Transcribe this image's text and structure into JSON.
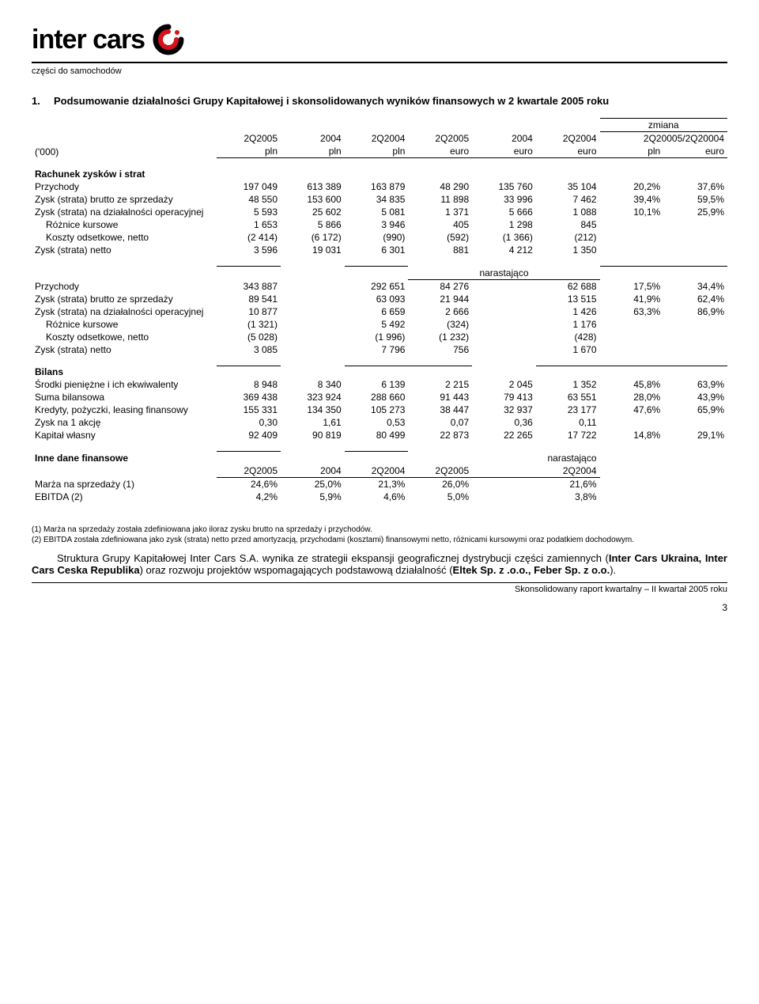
{
  "logo": {
    "text": "inter cars",
    "tagline": "części do samochodów",
    "icon_color_outer": "#000000",
    "icon_color_inner": "#d4131a"
  },
  "section": {
    "num": "1.",
    "title": "Podsumowanie działalności Grupy Kapitałowej i skonsolidowanych wyników finansowych w 2 kwartale 2005 roku"
  },
  "hdr": {
    "zmiana": "zmiana",
    "c1": "2Q2005",
    "c2": "2004",
    "c3": "2Q2004",
    "c4": "2Q2005",
    "c5": "2004",
    "c6": "2Q2004",
    "c7": "2Q20005/2Q20004",
    "unit_row_label": "('000)",
    "u1": "pln",
    "u2": "pln",
    "u3": "pln",
    "u4": "euro",
    "u5": "euro",
    "u6": "euro",
    "u7": "pln",
    "u8": "euro"
  },
  "rach": {
    "title": "Rachunek zysków i strat",
    "rows": [
      {
        "label": "Przychody",
        "v": [
          "197 049",
          "613 389",
          "163 879",
          "48 290",
          "135 760",
          "35 104",
          "20,2%",
          "37,6%"
        ]
      },
      {
        "label": "Zysk (strata) brutto ze sprzedaży",
        "v": [
          "48 550",
          "153 600",
          "34 835",
          "11 898",
          "33 996",
          "7 462",
          "39,4%",
          "59,5%"
        ]
      },
      {
        "label": "Zysk (strata) na działalności operacyjnej",
        "v": [
          "5 593",
          "25 602",
          "5 081",
          "1 371",
          "5 666",
          "1 088",
          "10,1%",
          "25,9%"
        ]
      },
      {
        "label": "Różnice kursowe",
        "indent": true,
        "v": [
          "1 653",
          "5 866",
          "3 946",
          "405",
          "1 298",
          "845",
          "",
          ""
        ]
      },
      {
        "label": "Koszty odsetkowe, netto",
        "indent": true,
        "v": [
          "(2 414)",
          "(6 172)",
          "(990)",
          "(592)",
          "(1 366)",
          "(212)",
          "",
          ""
        ]
      },
      {
        "label": "Zysk (strata) netto",
        "v": [
          "3 596",
          "19 031",
          "6 301",
          "881",
          "4 212",
          "1 350",
          "",
          ""
        ]
      }
    ]
  },
  "nar": {
    "label": "narastająco",
    "rows": [
      {
        "label": "Przychody",
        "v": [
          "343 887",
          "",
          "292 651",
          "84 276",
          "",
          "62 688",
          "17,5%",
          "34,4%"
        ]
      },
      {
        "label": "Zysk (strata) brutto ze sprzedaży",
        "v": [
          "89 541",
          "",
          "63 093",
          "21 944",
          "",
          "13 515",
          "41,9%",
          "62,4%"
        ]
      },
      {
        "label": "Zysk (strata) na działalności operacyjnej",
        "v": [
          "10 877",
          "",
          "6 659",
          "2 666",
          "",
          "1 426",
          "63,3%",
          "86,9%"
        ]
      },
      {
        "label": "Różnice kursowe",
        "indent": true,
        "v": [
          "(1 321)",
          "",
          "5 492",
          "(324)",
          "",
          "1 176",
          "",
          ""
        ]
      },
      {
        "label": "Koszty odsetkowe, netto",
        "indent": true,
        "v": [
          "(5 028)",
          "",
          "(1 996)",
          "(1 232)",
          "",
          "(428)",
          "",
          ""
        ]
      },
      {
        "label": "Zysk (strata) netto",
        "v": [
          "3 085",
          "",
          "7 796",
          "756",
          "",
          "1 670",
          "",
          ""
        ]
      }
    ]
  },
  "bilans": {
    "title": "Bilans",
    "rows": [
      {
        "label": "Środki pieniężne i ich ekwiwalenty",
        "v": [
          "8 948",
          "8 340",
          "6 139",
          "2 215",
          "2 045",
          "1 352",
          "45,8%",
          "63,9%"
        ]
      },
      {
        "label": "Suma bilansowa",
        "v": [
          "369 438",
          "323 924",
          "288 660",
          "91 443",
          "79 413",
          "63 551",
          "28,0%",
          "43,9%"
        ]
      },
      {
        "label": "Kredyty, pożyczki, leasing finansowy",
        "v": [
          "155 331",
          "134 350",
          "105 273",
          "38 447",
          "32 937",
          "23 177",
          "47,6%",
          "65,9%"
        ]
      },
      {
        "label": "Zysk na 1 akcję",
        "v": [
          "0,30",
          "1,61",
          "0,53",
          "0,07",
          "0,36",
          "0,11",
          "",
          ""
        ]
      },
      {
        "label": "Kapitał własny",
        "v": [
          "92 409",
          "90 819",
          "80 499",
          "22 873",
          "22 265",
          "17 722",
          "14,8%",
          "29,1%"
        ]
      }
    ]
  },
  "inne": {
    "title": "Inne dane finansowe",
    "nar": "narastająco",
    "hdr": [
      "2Q2005",
      "2004",
      "2Q2004",
      "2Q2005",
      "",
      "2Q2004"
    ],
    "rows": [
      {
        "label": "Marża na sprzedaży (1)",
        "v": [
          "24,6%",
          "25,0%",
          "21,3%",
          "26,0%",
          "",
          "21,6%"
        ]
      },
      {
        "label": "EBITDA (2)",
        "v": [
          "4,2%",
          "5,9%",
          "4,6%",
          "5,0%",
          "",
          "3,8%"
        ]
      }
    ]
  },
  "footnotes": {
    "f1": "(1)    Marża na sprzedaży została zdefiniowana jako iloraz zysku brutto na sprzedaży i przychodów.",
    "f2": "(2)    EBITDA została zdefiniowana jako zysk (strata) netto przed amortyzacją, przychodami (kosztami) finansowymi netto, różnicami kursowymi oraz podatkiem dochodowym."
  },
  "body": "Struktura Grupy Kapitałowej Inter Cars S.A. wynika ze strategii ekspansji geograficznej dystrybucji części zamiennych (Inter Cars Ukraina, Inter Cars Ceska Republika) oraz rozwoju projektów wspomagających podstawową działalność (Eltek Sp. z .o.o., Feber Sp. z o.o.).",
  "footer": "Skonsolidowany raport kwartalny – II kwartał 2005 roku",
  "page": "3"
}
